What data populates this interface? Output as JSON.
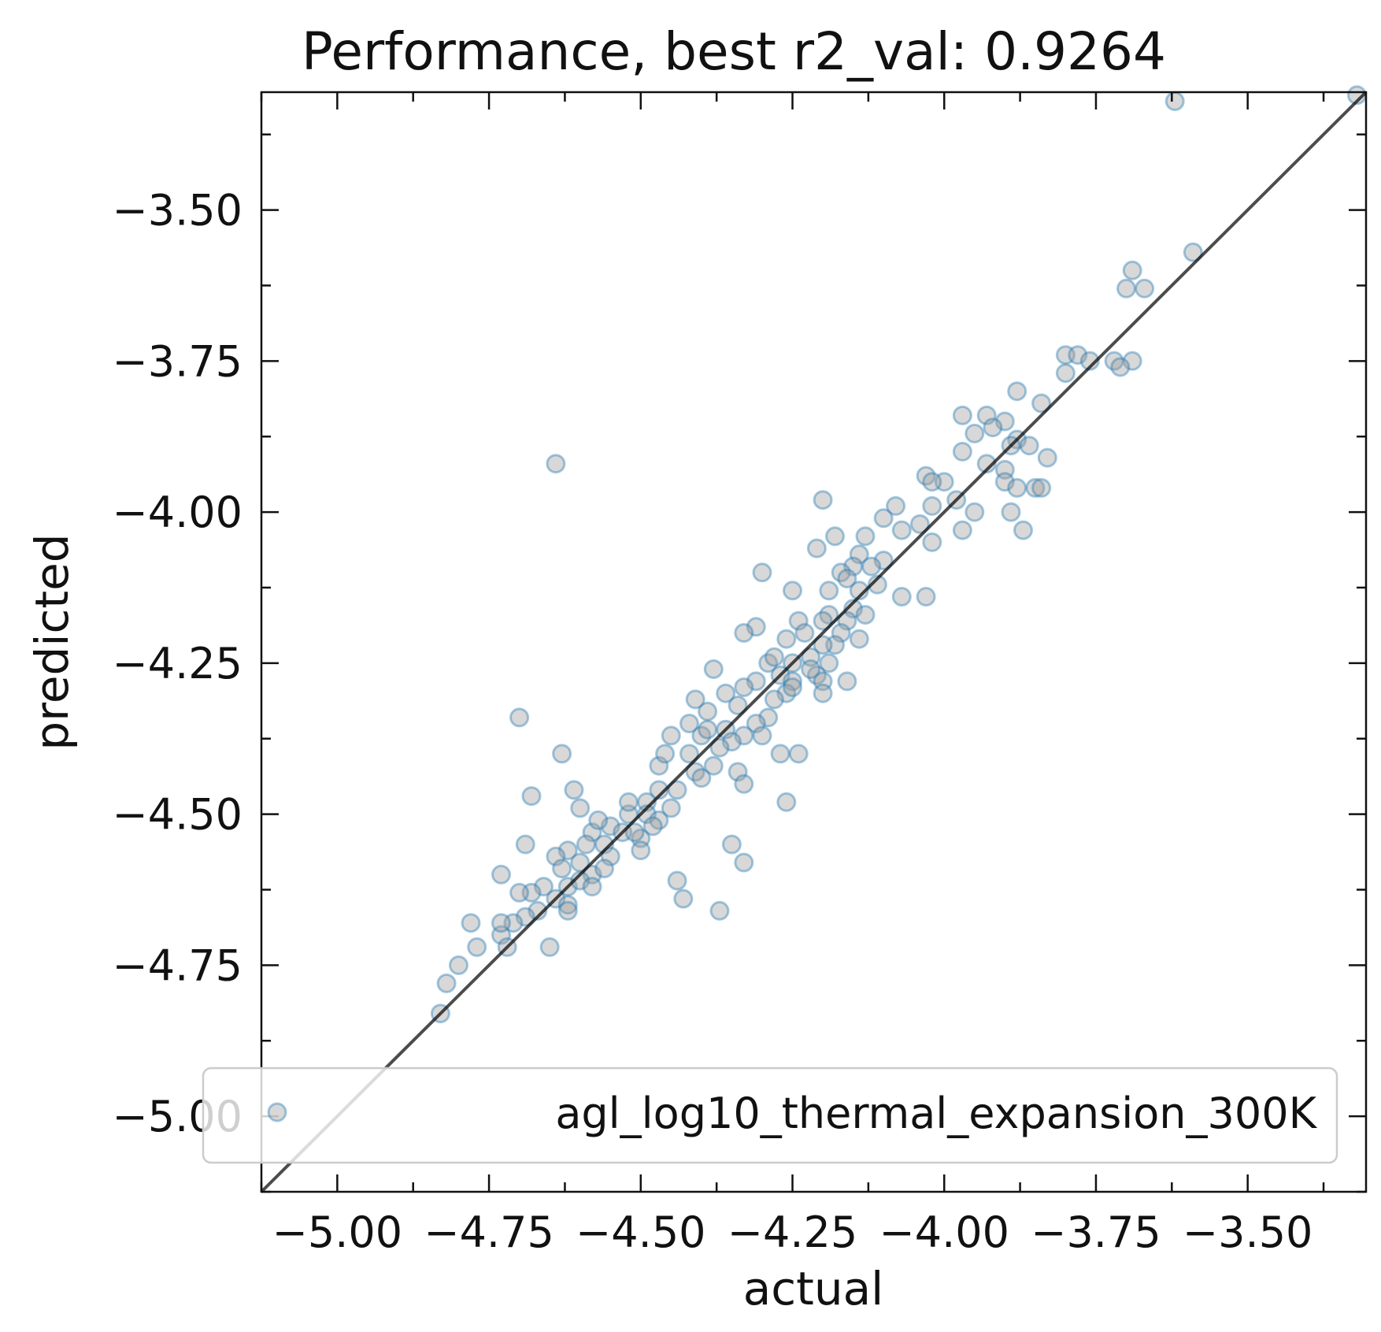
{
  "chart_data": {
    "type": "scatter",
    "title": "Performance, best r2_val: 0.9264",
    "xlabel": "actual",
    "ylabel": "predicted",
    "xlim": [
      -5.125,
      -3.305
    ],
    "ylim": [
      -5.125,
      -3.305
    ],
    "xticks": [
      -5.0,
      -4.75,
      -4.5,
      -4.25,
      -4.0,
      -3.75,
      -3.5
    ],
    "yticks": [
      -5.0,
      -4.75,
      -4.5,
      -4.25,
      -4.0,
      -3.75,
      -3.5
    ],
    "xtick_labels": [
      "−5.00",
      "−4.75",
      "−4.50",
      "−4.25",
      "−4.00",
      "−3.75",
      "−3.50"
    ],
    "ytick_labels": [
      "−5.00",
      "−4.75",
      "−4.50",
      "−4.25",
      "−4.00",
      "−3.75",
      "−3.50"
    ],
    "minor_tick_step": 0.125,
    "grid": false,
    "legend": {
      "position": "bottom-right",
      "entries": [
        "agl_log10_thermal_expansion_300K"
      ]
    },
    "reference_line": {
      "from": [
        -5.125,
        -5.125
      ],
      "to": [
        -3.305,
        -3.305
      ],
      "color": "#000000"
    },
    "marker": {
      "fill": "#9e9e9e",
      "edge": "#1f77b4",
      "alpha": 0.4
    },
    "series": [
      {
        "name": "agl_log10_thermal_expansion_300K",
        "points": [
          [
            -3.32,
            -3.31
          ],
          [
            -3.62,
            -3.32
          ],
          [
            -3.59,
            -3.57
          ],
          [
            -3.69,
            -3.6
          ],
          [
            -3.7,
            -3.63
          ],
          [
            -3.67,
            -3.63
          ],
          [
            -3.8,
            -3.74
          ],
          [
            -3.78,
            -3.74
          ],
          [
            -3.76,
            -3.75
          ],
          [
            -3.72,
            -3.75
          ],
          [
            -3.69,
            -3.75
          ],
          [
            -3.71,
            -3.76
          ],
          [
            -3.8,
            -3.77
          ],
          [
            -3.88,
            -3.8
          ],
          [
            -3.84,
            -3.82
          ],
          [
            -3.93,
            -3.84
          ],
          [
            -3.97,
            -3.84
          ],
          [
            -3.9,
            -3.85
          ],
          [
            -3.92,
            -3.86
          ],
          [
            -3.95,
            -3.87
          ],
          [
            -3.88,
            -3.88
          ],
          [
            -3.89,
            -3.89
          ],
          [
            -3.86,
            -3.89
          ],
          [
            -3.97,
            -3.9
          ],
          [
            -3.83,
            -3.91
          ],
          [
            -3.93,
            -3.92
          ],
          [
            -3.9,
            -3.93
          ],
          [
            -4.03,
            -3.94
          ],
          [
            -4.0,
            -3.95
          ],
          [
            -3.9,
            -3.95
          ],
          [
            -3.88,
            -3.96
          ],
          [
            -3.85,
            -3.96
          ],
          [
            -3.84,
            -3.96
          ],
          [
            -4.02,
            -3.95
          ],
          [
            -3.98,
            -3.98
          ],
          [
            -4.02,
            -3.99
          ],
          [
            -4.08,
            -3.99
          ],
          [
            -3.95,
            -4.0
          ],
          [
            -3.89,
            -4.0
          ],
          [
            -3.87,
            -4.03
          ],
          [
            -3.97,
            -4.03
          ],
          [
            -4.04,
            -4.02
          ],
          [
            -4.02,
            -4.05
          ],
          [
            -4.07,
            -4.03
          ],
          [
            -4.1,
            -4.01
          ],
          [
            -4.2,
            -3.98
          ],
          [
            -4.18,
            -4.04
          ],
          [
            -4.21,
            -4.06
          ],
          [
            -4.1,
            -4.08
          ],
          [
            -4.13,
            -4.04
          ],
          [
            -4.14,
            -4.07
          ],
          [
            -4.15,
            -4.09
          ],
          [
            -4.12,
            -4.09
          ],
          [
            -4.17,
            -4.1
          ],
          [
            -4.16,
            -4.11
          ],
          [
            -4.11,
            -4.12
          ],
          [
            -4.07,
            -4.14
          ],
          [
            -4.03,
            -4.14
          ],
          [
            -4.14,
            -4.13
          ],
          [
            -4.19,
            -4.13
          ],
          [
            -4.15,
            -4.16
          ],
          [
            -4.19,
            -4.17
          ],
          [
            -4.13,
            -4.17
          ],
          [
            -4.16,
            -4.18
          ],
          [
            -4.2,
            -4.18
          ],
          [
            -4.24,
            -4.18
          ],
          [
            -4.23,
            -4.2
          ],
          [
            -4.17,
            -4.2
          ],
          [
            -4.14,
            -4.21
          ],
          [
            -4.18,
            -4.22
          ],
          [
            -4.2,
            -4.22
          ],
          [
            -4.26,
            -4.21
          ],
          [
            -4.22,
            -4.24
          ],
          [
            -4.25,
            -4.25
          ],
          [
            -4.19,
            -4.25
          ],
          [
            -4.29,
            -4.25
          ],
          [
            -4.21,
            -4.27
          ],
          [
            -4.27,
            -4.27
          ],
          [
            -4.25,
            -4.28
          ],
          [
            -4.31,
            -4.28
          ],
          [
            -4.33,
            -4.29
          ],
          [
            -4.26,
            -4.3
          ],
          [
            -4.28,
            -4.31
          ],
          [
            -4.34,
            -4.32
          ],
          [
            -4.39,
            -4.33
          ],
          [
            -4.29,
            -4.34
          ],
          [
            -4.31,
            -4.35
          ],
          [
            -4.36,
            -4.36
          ],
          [
            -4.33,
            -4.37
          ],
          [
            -4.4,
            -4.37
          ],
          [
            -4.45,
            -4.37
          ],
          [
            -4.35,
            -4.38
          ],
          [
            -4.37,
            -4.39
          ],
          [
            -4.42,
            -4.4
          ],
          [
            -4.38,
            -4.42
          ],
          [
            -4.41,
            -4.43
          ],
          [
            -4.47,
            -4.42
          ],
          [
            -4.4,
            -4.44
          ],
          [
            -4.44,
            -4.46
          ],
          [
            -4.47,
            -4.46
          ],
          [
            -4.49,
            -4.48
          ],
          [
            -4.45,
            -4.49
          ],
          [
            -4.49,
            -4.5
          ],
          [
            -4.52,
            -4.5
          ],
          [
            -4.47,
            -4.51
          ],
          [
            -4.55,
            -4.52
          ],
          [
            -4.53,
            -4.53
          ],
          [
            -4.58,
            -4.53
          ],
          [
            -4.5,
            -4.54
          ],
          [
            -4.56,
            -4.55
          ],
          [
            -4.59,
            -4.55
          ],
          [
            -4.62,
            -4.56
          ],
          [
            -4.55,
            -4.57
          ],
          [
            -4.6,
            -4.58
          ],
          [
            -4.64,
            -4.57
          ],
          [
            -4.63,
            -4.59
          ],
          [
            -4.58,
            -4.6
          ],
          [
            -4.62,
            -4.62
          ],
          [
            -4.66,
            -4.62
          ],
          [
            -4.68,
            -4.63
          ],
          [
            -4.64,
            -4.64
          ],
          [
            -4.67,
            -4.66
          ],
          [
            -4.69,
            -4.67
          ],
          [
            -4.71,
            -4.68
          ],
          [
            -4.73,
            -4.7
          ],
          [
            -4.72,
            -4.72
          ],
          [
            -4.77,
            -4.72
          ],
          [
            -4.8,
            -4.75
          ],
          [
            -4.82,
            -4.78
          ],
          [
            -4.83,
            -4.83
          ],
          [
            -4.73,
            -4.6
          ],
          [
            -4.7,
            -4.63
          ],
          [
            -4.69,
            -4.55
          ],
          [
            -4.68,
            -4.47
          ],
          [
            -4.61,
            -4.46
          ],
          [
            -4.63,
            -4.4
          ],
          [
            -4.57,
            -4.51
          ],
          [
            -4.51,
            -4.53
          ],
          [
            -4.48,
            -4.52
          ],
          [
            -4.44,
            -4.61
          ],
          [
            -4.43,
            -4.64
          ],
          [
            -4.37,
            -4.66
          ],
          [
            -4.62,
            -4.65
          ],
          [
            -4.6,
            -4.49
          ],
          [
            -4.65,
            -4.72
          ],
          [
            -4.73,
            -4.68
          ],
          [
            -4.78,
            -4.68
          ],
          [
            -4.5,
            -4.56
          ],
          [
            -4.33,
            -4.58
          ],
          [
            -4.35,
            -4.55
          ],
          [
            -4.34,
            -4.43
          ],
          [
            -4.33,
            -4.45
          ],
          [
            -4.26,
            -4.48
          ],
          [
            -4.27,
            -4.4
          ],
          [
            -4.3,
            -4.37
          ],
          [
            -4.24,
            -4.4
          ],
          [
            -4.2,
            -4.28
          ],
          [
            -4.16,
            -4.28
          ],
          [
            -4.2,
            -4.3
          ],
          [
            -4.31,
            -4.19
          ],
          [
            -4.38,
            -4.26
          ],
          [
            -4.7,
            -4.34
          ],
          [
            -4.64,
            -3.92
          ],
          [
            -4.25,
            -4.13
          ],
          [
            -4.3,
            -4.1
          ],
          [
            -4.33,
            -4.2
          ],
          [
            -4.28,
            -4.24
          ],
          [
            -4.22,
            -4.26
          ],
          [
            -4.25,
            -4.29
          ],
          [
            -4.36,
            -4.3
          ],
          [
            -4.41,
            -4.31
          ],
          [
            -4.42,
            -4.35
          ],
          [
            -4.39,
            -4.36
          ],
          [
            -4.46,
            -4.4
          ],
          [
            -4.52,
            -4.48
          ],
          [
            -4.56,
            -4.59
          ],
          [
            -4.62,
            -4.66
          ],
          [
            -4.6,
            -4.61
          ],
          [
            -4.58,
            -4.62
          ]
        ]
      }
    ]
  }
}
